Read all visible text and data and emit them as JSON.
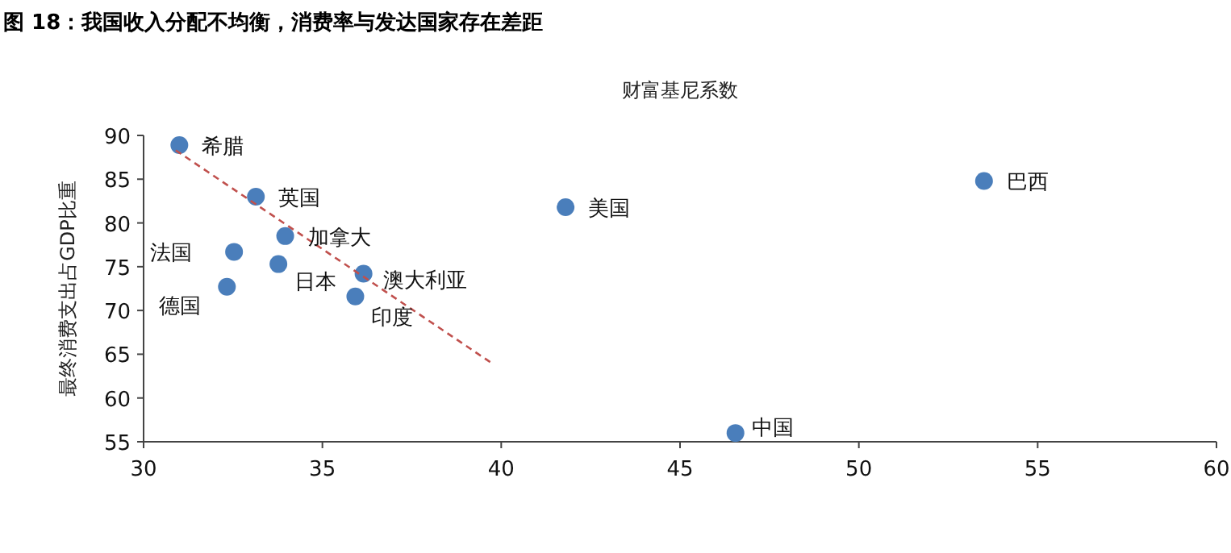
{
  "chart_data": {
    "type": "scatter",
    "title": "图 18：我国收入分配不均衡，消费率与发达国家存在差距",
    "xlabel": "财富基尼系数",
    "ylabel": "最终消费支出占GDP比重",
    "xlim": [
      30,
      60
    ],
    "ylim": [
      55,
      90
    ],
    "xticks": [
      30,
      35,
      40,
      45,
      50,
      55,
      60
    ],
    "yticks": [
      55,
      60,
      65,
      70,
      75,
      80,
      85,
      90
    ],
    "grid": false,
    "series": [
      {
        "color": "#4a7ebb",
        "marker": "circle",
        "x": [
          31.0,
          33.14,
          33.96,
          32.53,
          33.77,
          36.15,
          32.33,
          35.92,
          41.8,
          53.5,
          46.55
        ],
        "values": [
          88.9,
          83.0,
          78.5,
          76.7,
          75.3,
          74.2,
          72.7,
          71.6,
          81.8,
          84.8,
          56.0
        ]
      },
      {
        "type": "line",
        "color": "#c0504d",
        "line_style": "dashed",
        "marker": "none",
        "x": [
          30.9,
          39.73
        ],
        "values": [
          88.3,
          64.0
        ]
      }
    ],
    "annotations": [
      {
        "text": "希腊",
        "x": 31.0,
        "y": 88.9
      },
      {
        "text": "英国",
        "x": 33.14,
        "y": 83.0
      },
      {
        "text": "加拿大",
        "x": 33.96,
        "y": 78.5
      },
      {
        "text": "法国",
        "x": 32.53,
        "y": 76.7
      },
      {
        "text": "日本",
        "x": 33.77,
        "y": 75.3
      },
      {
        "text": "澳大利亚",
        "x": 36.15,
        "y": 74.2
      },
      {
        "text": "德国",
        "x": 32.33,
        "y": 72.7
      },
      {
        "text": "印度",
        "x": 35.92,
        "y": 71.6
      },
      {
        "text": "美国",
        "x": 41.8,
        "y": 81.8
      },
      {
        "text": "巴西",
        "x": 53.5,
        "y": 84.8
      },
      {
        "text": "中国",
        "x": 46.55,
        "y": 56.0
      }
    ]
  }
}
